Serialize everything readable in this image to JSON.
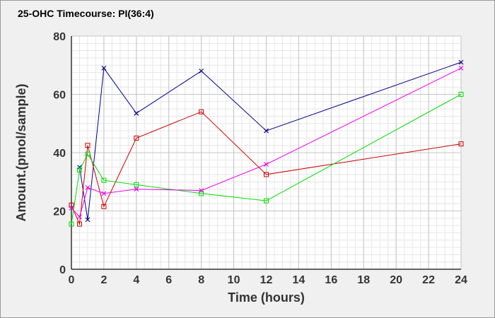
{
  "chart_data": {
    "type": "line",
    "title": "25-OHC Timecourse: PI(36:4)",
    "xlabel": "Time (hours)",
    "ylabel": "Amount.(pmol/sample)",
    "xlim": [
      0,
      24
    ],
    "ylim": [
      0,
      80
    ],
    "xticks": [
      0,
      2,
      4,
      6,
      8,
      10,
      12,
      14,
      16,
      18,
      20,
      22,
      24
    ],
    "yticks": [
      0,
      20,
      40,
      60,
      80
    ],
    "grid": true,
    "series": [
      {
        "color": "#00008b",
        "marker": "x",
        "points": [
          [
            0.5,
            35
          ],
          [
            1,
            17
          ],
          [
            2,
            69
          ],
          [
            4,
            53.5
          ],
          [
            8,
            68
          ],
          [
            12,
            47.5
          ],
          [
            24,
            71
          ]
        ]
      },
      {
        "color": "#cc0000",
        "marker": "square",
        "points": [
          [
            0,
            22
          ],
          [
            0.5,
            15.5
          ],
          [
            1,
            42.5
          ],
          [
            2,
            21.5
          ],
          [
            4,
            45
          ],
          [
            8,
            54
          ],
          [
            12,
            32.5
          ],
          [
            24,
            43
          ]
        ]
      },
      {
        "color": "#00dd00",
        "marker": "square",
        "points": [
          [
            0,
            15.5
          ],
          [
            0.5,
            34
          ],
          [
            1,
            39.5
          ],
          [
            2,
            30.5
          ],
          [
            4,
            29
          ],
          [
            8,
            26
          ],
          [
            12,
            23.5
          ],
          [
            24,
            60
          ]
        ]
      },
      {
        "color": "#ee00ee",
        "marker": "x",
        "points": [
          [
            0,
            21
          ],
          [
            0.5,
            18
          ],
          [
            1,
            28
          ],
          [
            2,
            26
          ],
          [
            4,
            27.5
          ],
          [
            8,
            27
          ],
          [
            12,
            36
          ],
          [
            24,
            69
          ]
        ]
      }
    ]
  }
}
